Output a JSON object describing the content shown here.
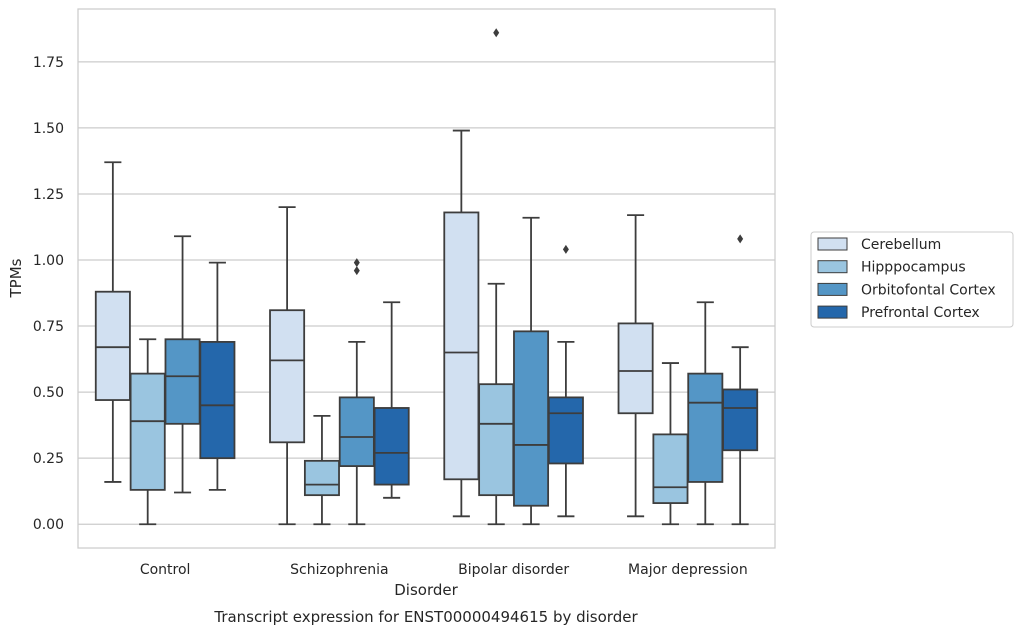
{
  "chart_data": {
    "type": "box",
    "title": "Transcript expression for ENST00000494615 by disorder",
    "xlabel": "Disorder",
    "ylabel": "TPMs",
    "ylim": [
      -0.09,
      1.95
    ],
    "yticks": [
      0.0,
      0.25,
      0.5,
      0.75,
      1.0,
      1.25,
      1.5,
      1.75
    ],
    "ytick_labels": [
      "0.00",
      "0.25",
      "0.50",
      "0.75",
      "1.00",
      "1.25",
      "1.50",
      "1.75"
    ],
    "grid": "horizontal",
    "legend_position": "right",
    "categories": [
      "Control",
      "Schizophrenia",
      "Bipolar disorder",
      "Major depression"
    ],
    "series": [
      {
        "name": "Cerebellum",
        "color": "#d1e0f1",
        "boxes": [
          {
            "whislo": 0.16,
            "q1": 0.47,
            "med": 0.67,
            "q3": 0.88,
            "whishi": 1.37,
            "fliers": []
          },
          {
            "whislo": 0.0,
            "q1": 0.31,
            "med": 0.62,
            "q3": 0.81,
            "whishi": 1.2,
            "fliers": []
          },
          {
            "whislo": 0.03,
            "q1": 0.17,
            "med": 0.65,
            "q3": 1.18,
            "whishi": 1.49,
            "fliers": []
          },
          {
            "whislo": 0.03,
            "q1": 0.42,
            "med": 0.58,
            "q3": 0.76,
            "whishi": 1.17,
            "fliers": []
          }
        ]
      },
      {
        "name": "Hipppocampus",
        "color": "#9ac5e0",
        "boxes": [
          {
            "whislo": 0.0,
            "q1": 0.13,
            "med": 0.39,
            "q3": 0.57,
            "whishi": 0.7,
            "fliers": []
          },
          {
            "whislo": 0.0,
            "q1": 0.11,
            "med": 0.15,
            "q3": 0.24,
            "whishi": 0.41,
            "fliers": []
          },
          {
            "whislo": 0.0,
            "q1": 0.11,
            "med": 0.38,
            "q3": 0.53,
            "whishi": 0.91,
            "fliers": [
              1.86
            ]
          },
          {
            "whislo": 0.0,
            "q1": 0.08,
            "med": 0.14,
            "q3": 0.34,
            "whishi": 0.61,
            "fliers": []
          }
        ]
      },
      {
        "name": "Orbitofontal Cortex",
        "color": "#5496c6",
        "boxes": [
          {
            "whislo": 0.12,
            "q1": 0.38,
            "med": 0.56,
            "q3": 0.7,
            "whishi": 1.09,
            "fliers": []
          },
          {
            "whislo": 0.0,
            "q1": 0.22,
            "med": 0.33,
            "q3": 0.48,
            "whishi": 0.69,
            "fliers": [
              0.96,
              0.99
            ]
          },
          {
            "whislo": 0.0,
            "q1": 0.07,
            "med": 0.3,
            "q3": 0.73,
            "whishi": 1.16,
            "fliers": []
          },
          {
            "whislo": 0.0,
            "q1": 0.16,
            "med": 0.46,
            "q3": 0.57,
            "whishi": 0.84,
            "fliers": []
          }
        ]
      },
      {
        "name": "Prefrontal Cortex",
        "color": "#2467ab",
        "boxes": [
          {
            "whislo": 0.13,
            "q1": 0.25,
            "med": 0.45,
            "q3": 0.69,
            "whishi": 0.99,
            "fliers": []
          },
          {
            "whislo": 0.1,
            "q1": 0.15,
            "med": 0.27,
            "q3": 0.44,
            "whishi": 0.84,
            "fliers": []
          },
          {
            "whislo": 0.03,
            "q1": 0.23,
            "med": 0.42,
            "q3": 0.48,
            "whishi": 0.69,
            "fliers": [
              1.04
            ]
          },
          {
            "whislo": 0.0,
            "q1": 0.28,
            "med": 0.44,
            "q3": 0.51,
            "whishi": 0.67,
            "fliers": [
              1.08
            ]
          }
        ]
      }
    ]
  }
}
